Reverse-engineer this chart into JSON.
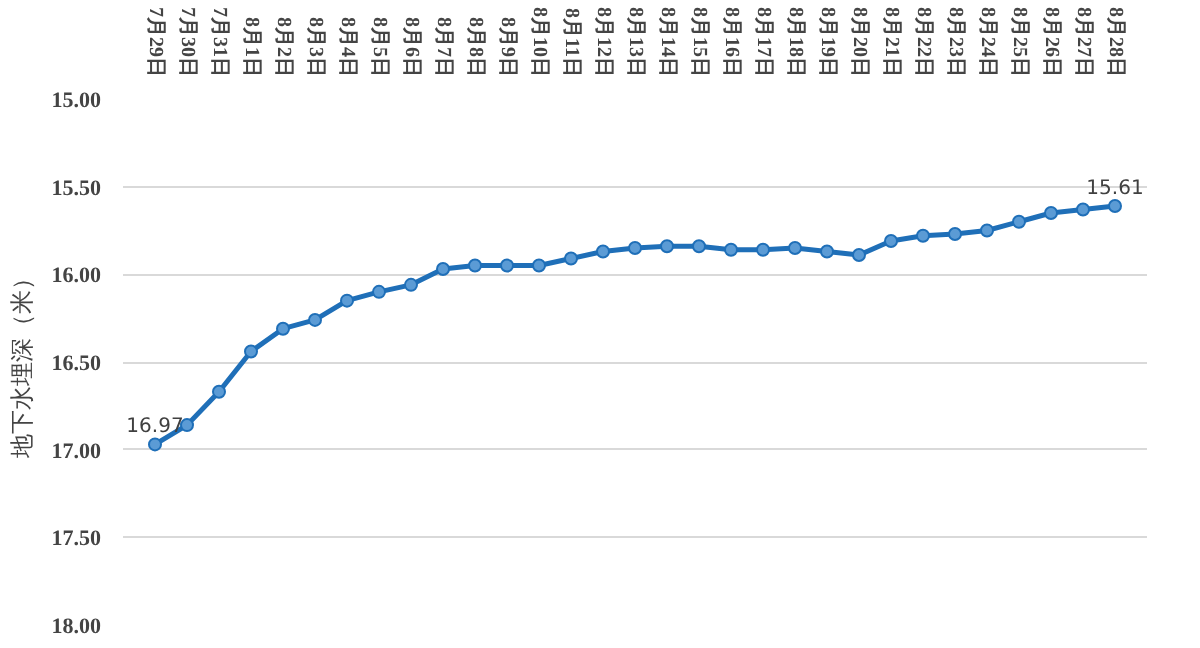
{
  "chart_data": {
    "type": "line",
    "ylabel": "地下水埋深（米）",
    "categories": [
      "7月29日",
      "7月30日",
      "7月31日",
      "8月1日",
      "8月2日",
      "8月3日",
      "8月4日",
      "8月5日",
      "8月6日",
      "8月7日",
      "8月8日",
      "8月9日",
      "8月10日",
      "8月11日",
      "8月12日",
      "8月13日",
      "8月14日",
      "8月15日",
      "8月16日",
      "8月17日",
      "8月18日",
      "8月19日",
      "8月20日",
      "8月21日",
      "8月22日",
      "8月23日",
      "8月24日",
      "8月25日",
      "8月26日",
      "8月27日",
      "8月28日"
    ],
    "series": [
      {
        "color": "#1f6fb8",
        "values": [
          16.97,
          16.86,
          16.67,
          16.44,
          16.31,
          16.26,
          16.15,
          16.1,
          16.06,
          15.97,
          15.95,
          15.95,
          15.95,
          15.91,
          15.87,
          15.85,
          15.84,
          15.84,
          15.86,
          15.86,
          15.85,
          15.87,
          15.89,
          15.81,
          15.78,
          15.77,
          15.75,
          15.7,
          15.65,
          15.63,
          15.61
        ],
        "value_labels": [
          "16.97",
          null,
          null,
          null,
          null,
          null,
          null,
          null,
          null,
          null,
          null,
          null,
          null,
          null,
          null,
          null,
          null,
          null,
          null,
          null,
          null,
          null,
          null,
          null,
          null,
          null,
          null,
          null,
          null,
          null,
          "15.61"
        ]
      }
    ],
    "ylim": [
      18.0,
      15.0
    ],
    "yticks": [
      {
        "value": 15,
        "label": "15.00"
      },
      {
        "value": 15.5,
        "label": "15.50"
      },
      {
        "value": 16,
        "label": "16.00"
      },
      {
        "value": 16.5,
        "label": "16.50"
      },
      {
        "value": 17,
        "label": "17.00"
      },
      {
        "value": 17.5,
        "label": "17.50"
      },
      {
        "value": 18,
        "label": "18.00"
      }
    ],
    "grid": "y",
    "marker": "circle",
    "line_style": "solid"
  }
}
